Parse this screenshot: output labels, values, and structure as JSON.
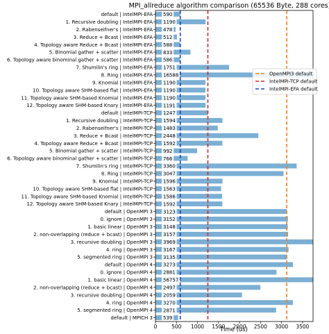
{
  "chart_data": {
    "type": "bar",
    "orientation": "horizontal",
    "title": "MPI_allreduce algorithm comparison (65536 Byte, 288 cores)",
    "xlabel": "Time (us)",
    "ylabel": "",
    "xlim": [
      0,
      3750
    ],
    "xticks": [
      0,
      500,
      1000,
      1500,
      2000,
      2500,
      3000,
      3500
    ],
    "grid": false,
    "legend_position": "upper-right",
    "bar_color": "#7bafd4",
    "categories": [
      "default | IntelMPI-EFA",
      "1. Recursive doubling | IntelMPI-EFA",
      "2. Rabenseifner's | IntelMPI-EFA",
      "3. Reduce + Bcast | IntelMPI-EFA",
      "4. Topology aware Reduce + Bcast | IntelMPI-EFA",
      "5. Binomial gather + scatter | IntelMPI-EFA",
      "6. Topology aware binominal gather + scatter | IntelMPI-EFA",
      "7. Shumilin's ring | IntelMPI-EFA",
      "8. Ring | IntelMPI-EFA",
      "9. Knomial | IntelMPI-EFA",
      "10. Topology aware SHM-based flat | IntelMPI-EFA",
      "11. Topology aware SHM-based Knomial | IntelMPI-EFA",
      "12. Topology aware SHM-based Knary | IntelMPI-EFA",
      "default | IntelMPI-TCP",
      "1. Recursive doubling | IntelMPI-TCP",
      "2. Rabenseifner's | IntelMPI-TCP",
      "3. Reduce + Bcast | IntelMPI-TCP",
      "4. Topology aware Reduce + Bcast | IntelMPI-TCP",
      "5. Binomial gather + scatter | IntelMPI-TCP",
      "6. Topology aware binominal gather + scatter | IntelMPI-TCP",
      "7. Shumilin's ring | IntelMPI-TCP",
      "8. Ring | IntelMPI-TCP",
      "9. Knomial | IntelMPI-TCP",
      "10. Topology aware SHM-based flat | IntelMPI-TCP",
      "11. Topology aware SHM-based Knomial | IntelMPI-TCP",
      "12. Topology aware SHM-based Knary | IntelMPI-TCP",
      "default | OpenMPI 3",
      "0. ignore | OpenMPI 3",
      "1. basic linear | OpenMPI 3",
      "2. non-overlapping (reduce + bcast) | OpenMPI 3",
      "3. recursive doubling | OpenMPI 3",
      "4. ring | OpenMPI 3",
      "5. segmented ring | OpenMPI 3",
      "default | OpenMPI 4",
      "0. ignore | OpenMPI 4",
      "1. basic linear | OpenMPI 4",
      "2. non-overlapping (reduce + bcast) | OpenMPI 4",
      "3. recursive doubling | OpenMPI 4",
      "4. ring | OpenMPI 4",
      "5. segmented ring | OpenMPI 4",
      "default | MPICH 3"
    ],
    "values": [
      590,
      1190,
      478,
      512,
      588,
      833,
      586,
      1751,
      16588,
      1190,
      1190,
      1190,
      1191,
      1247,
      1594,
      1483,
      2448,
      1592,
      992,
      766,
      3360,
      3047,
      1596,
      1563,
      1586,
      1592,
      3123,
      3152,
      3148,
      3157,
      3969,
      3167,
      3135,
      3273,
      2881,
      56757,
      2497,
      2059,
      3270,
      2871,
      539
    ],
    "value_labels": [
      "590",
      "1190",
      "478",
      "512",
      "588",
      "833",
      "586",
      "1751",
      "16588",
      "1190",
      "1190",
      "1190",
      "1191",
      "1247",
      "1594",
      "1483",
      "2448",
      "1592",
      "992",
      "766",
      "3360",
      "3047",
      "1596",
      "1563",
      "1586",
      "1592",
      "3123",
      "3152",
      "3148",
      "3157",
      "3969",
      "3167",
      "3135",
      "3273",
      "2881",
      "56757",
      "2497",
      "2059",
      "3270",
      "2871",
      "539"
    ],
    "reference_lines": [
      {
        "name": "OpenMPI3 default",
        "value": 3123,
        "color": "#ff7f0e"
      },
      {
        "name": "IntelMPI-TCP default",
        "value": 1247,
        "color": "#d62728"
      },
      {
        "name": "IntelMPI-EFA default",
        "value": 590,
        "color": "#1f3fbf"
      }
    ]
  }
}
